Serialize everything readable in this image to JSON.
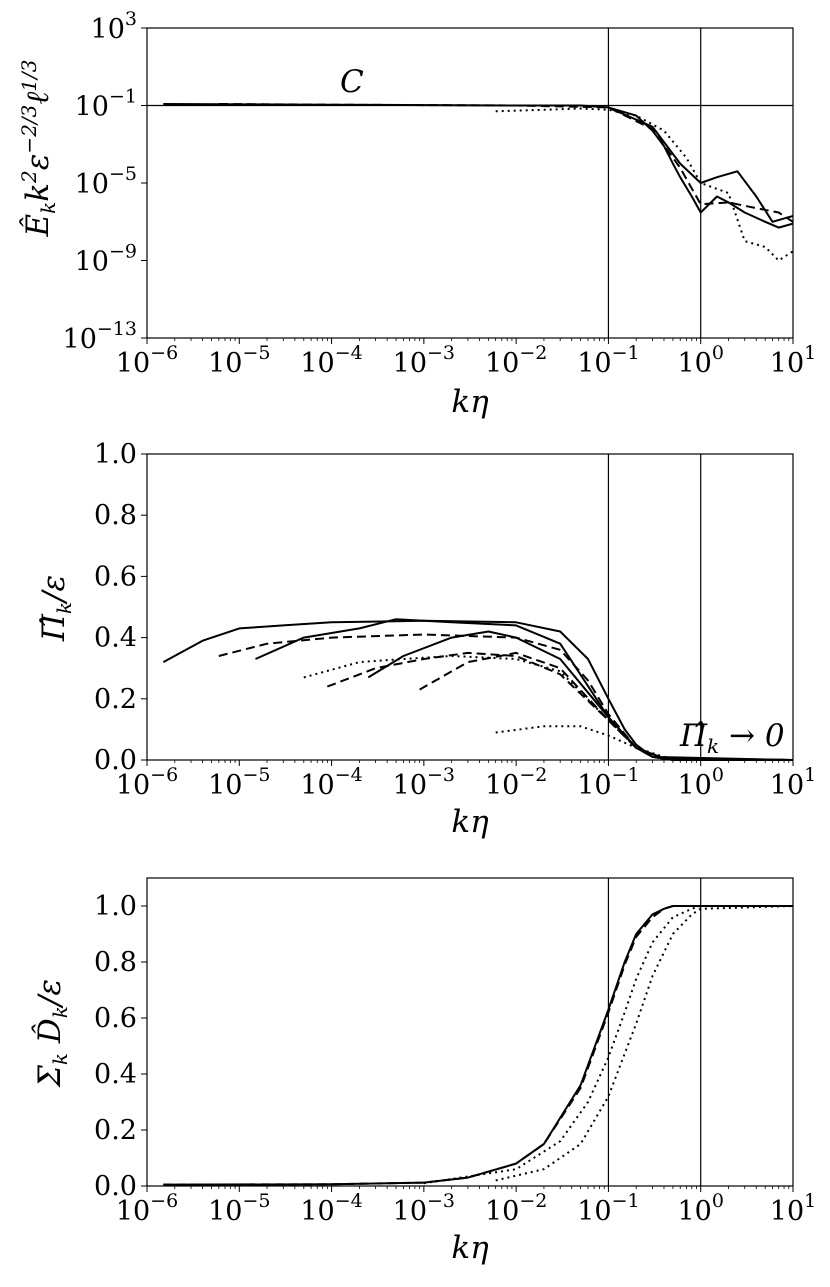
{
  "chart_data": [
    {
      "type": "line",
      "xscale": "log",
      "yscale": "log",
      "xlim": [
        1e-06,
        10
      ],
      "ylim": [
        1e-13,
        1000
      ],
      "x_ticks": [
        {
          "base": "10",
          "exp": "−6"
        },
        {
          "base": "10",
          "exp": "−5"
        },
        {
          "base": "10",
          "exp": "−4"
        },
        {
          "base": "10",
          "exp": "−3"
        },
        {
          "base": "10",
          "exp": "−2"
        },
        {
          "base": "10",
          "exp": "−1"
        },
        {
          "base": "10",
          "exp": "0"
        },
        {
          "base": "10",
          "exp": "1"
        }
      ],
      "y_ticks": [
        {
          "base": "10",
          "exp": "3"
        },
        {
          "base": "10",
          "exp": "−1"
        },
        {
          "base": "10",
          "exp": "−5"
        },
        {
          "base": "10",
          "exp": "−9"
        },
        {
          "base": "10",
          "exp": "−13"
        }
      ],
      "xlabel": "kη",
      "ylabel": "Ê_k k^2 ε^{-2/3} ℓ^{1/3}",
      "annotation": "C",
      "vlines": [
        0.1,
        1
      ],
      "hlines": [
        0.1
      ],
      "series": [
        {
          "style": "solid",
          "x": [
            1.5e-06,
            0.0001,
            0.01,
            0.05,
            0.1,
            0.2,
            0.3,
            0.4,
            0.5,
            0.6,
            0.8,
            1,
            1.5,
            2,
            3,
            5,
            7,
            10
          ],
          "y": [
            0.12,
            0.11,
            0.1,
            0.1,
            0.08,
            0.03,
            0.005,
            0.0008,
            0.0001,
            2e-05,
            2e-06,
            3e-07,
            2e-06,
            1e-06,
            3e-07,
            1e-07,
            5e-08,
            8e-08
          ]
        },
        {
          "style": "solid",
          "x": [
            0.1,
            0.3,
            0.6,
            1,
            1.5,
            2.5,
            4,
            6,
            10
          ],
          "y": [
            0.08,
            0.008,
            0.0001,
            1e-05,
            2e-05,
            4e-05,
            2e-06,
            1e-07,
            2e-07
          ]
        },
        {
          "style": "dashed",
          "x": [
            6e-06,
            0.0001,
            0.01,
            0.1,
            0.3,
            0.6,
            1,
            2,
            4,
            7,
            10
          ],
          "y": [
            0.12,
            0.11,
            0.1,
            0.08,
            0.006,
            6e-05,
            8e-07,
            1e-06,
            5e-07,
            3e-07,
            1e-07
          ]
        },
        {
          "style": "dotted",
          "x": [
            0.006,
            0.02,
            0.05,
            0.1,
            0.2,
            0.4,
            0.7,
            1,
            2,
            3,
            5,
            7,
            10
          ],
          "y": [
            0.05,
            0.06,
            0.07,
            0.06,
            0.03,
            0.005,
            0.0002,
            1e-05,
            3e-06,
            1e-08,
            5e-09,
            1e-09,
            3e-09
          ]
        }
      ]
    },
    {
      "type": "line",
      "xscale": "log",
      "yscale": "linear",
      "xlim": [
        1e-06,
        10
      ],
      "ylim": [
        0,
        1
      ],
      "x_ticks": [
        {
          "base": "10",
          "exp": "−6"
        },
        {
          "base": "10",
          "exp": "−5"
        },
        {
          "base": "10",
          "exp": "−4"
        },
        {
          "base": "10",
          "exp": "−3"
        },
        {
          "base": "10",
          "exp": "−2"
        },
        {
          "base": "10",
          "exp": "−1"
        },
        {
          "base": "10",
          "exp": "0"
        },
        {
          "base": "10",
          "exp": "1"
        }
      ],
      "y_ticks": [
        "0.0",
        "0.2",
        "0.4",
        "0.6",
        "0.8",
        "1.0"
      ],
      "xlabel": "kη",
      "ylabel": "Π̂_k/ε",
      "annotation": "Π̂_k → 0",
      "vlines": [
        0.1,
        1
      ],
      "series": [
        {
          "style": "solid",
          "x": [
            1.5e-06,
            4e-06,
            1e-05,
            3e-05,
            0.0001,
            0.001,
            0.01,
            0.03,
            0.06,
            0.1,
            0.15,
            0.2,
            0.3,
            0.5,
            1,
            10
          ],
          "y": [
            0.32,
            0.39,
            0.43,
            0.44,
            0.45,
            0.455,
            0.45,
            0.42,
            0.33,
            0.2,
            0.1,
            0.05,
            0.01,
            0,
            0,
            0
          ]
        },
        {
          "style": "dashed",
          "x": [
            6e-06,
            2e-05,
            0.0001,
            0.001,
            0.01,
            0.03,
            0.06,
            0.1,
            0.2,
            0.3,
            0.5,
            10
          ],
          "y": [
            0.34,
            0.38,
            0.4,
            0.41,
            0.4,
            0.36,
            0.26,
            0.15,
            0.04,
            0.01,
            0,
            0
          ]
        },
        {
          "style": "solid",
          "x": [
            1.5e-05,
            5e-05,
            0.0002,
            0.0005,
            0.002,
            0.01,
            0.03,
            0.1,
            0.2,
            0.3,
            10
          ],
          "y": [
            0.33,
            0.4,
            0.43,
            0.46,
            0.45,
            0.44,
            0.38,
            0.14,
            0.04,
            0.01,
            0
          ]
        },
        {
          "style": "dotted",
          "x": [
            5e-05,
            0.0002,
            0.0006,
            0.002,
            0.01,
            0.03,
            0.1,
            0.2,
            0.4,
            10
          ],
          "y": [
            0.27,
            0.32,
            0.33,
            0.34,
            0.33,
            0.29,
            0.13,
            0.04,
            0.005,
            0
          ]
        },
        {
          "style": "dashed",
          "x": [
            9e-05,
            0.0003,
            0.001,
            0.003,
            0.01,
            0.03,
            0.1,
            0.2,
            0.4,
            10
          ],
          "y": [
            0.24,
            0.3,
            0.33,
            0.35,
            0.34,
            0.28,
            0.13,
            0.04,
            0.005,
            0
          ]
        },
        {
          "style": "solid",
          "x": [
            0.00025,
            0.0006,
            0.002,
            0.005,
            0.01,
            0.03,
            0.1,
            0.2,
            0.4,
            10
          ],
          "y": [
            0.27,
            0.34,
            0.4,
            0.42,
            0.4,
            0.33,
            0.14,
            0.04,
            0.005,
            0
          ]
        },
        {
          "style": "dashed",
          "x": [
            0.0009,
            0.003,
            0.01,
            0.03,
            0.1,
            0.2,
            0.4,
            10
          ],
          "y": [
            0.23,
            0.32,
            0.35,
            0.3,
            0.13,
            0.04,
            0.005,
            0
          ]
        },
        {
          "style": "dotted",
          "x": [
            0.006,
            0.02,
            0.05,
            0.1,
            0.2,
            0.4,
            0.7,
            10
          ],
          "y": [
            0.09,
            0.11,
            0.11,
            0.08,
            0.04,
            0.01,
            0.001,
            0
          ]
        }
      ]
    },
    {
      "type": "line",
      "xscale": "log",
      "yscale": "linear",
      "xlim": [
        1e-06,
        10
      ],
      "ylim": [
        0,
        1.1
      ],
      "x_ticks": [
        {
          "base": "10",
          "exp": "−6"
        },
        {
          "base": "10",
          "exp": "−5"
        },
        {
          "base": "10",
          "exp": "−4"
        },
        {
          "base": "10",
          "exp": "−3"
        },
        {
          "base": "10",
          "exp": "−2"
        },
        {
          "base": "10",
          "exp": "−1"
        },
        {
          "base": "10",
          "exp": "0"
        },
        {
          "base": "10",
          "exp": "1"
        }
      ],
      "y_ticks": [
        "0.0",
        "0.2",
        "0.4",
        "0.6",
        "0.8",
        "1.0"
      ],
      "xlabel": "kη",
      "ylabel": "Σ_k D̂_k/ε",
      "vlines": [
        0.1,
        1
      ],
      "series": [
        {
          "style": "solid",
          "x": [
            1.5e-06,
            0.0001,
            0.001,
            0.003,
            0.01,
            0.02,
            0.05,
            0.1,
            0.15,
            0.2,
            0.3,
            0.4,
            0.5,
            1,
            10
          ],
          "y": [
            0.005,
            0.006,
            0.012,
            0.03,
            0.08,
            0.15,
            0.36,
            0.63,
            0.8,
            0.9,
            0.97,
            0.99,
            1.0,
            1.0,
            1.0
          ]
        },
        {
          "style": "dashed",
          "x": [
            1.5e-06,
            0.0001,
            0.001,
            0.003,
            0.01,
            0.02,
            0.05,
            0.1,
            0.15,
            0.2,
            0.3,
            0.4,
            0.5,
            1,
            10
          ],
          "y": [
            0.005,
            0.006,
            0.012,
            0.03,
            0.08,
            0.15,
            0.35,
            0.62,
            0.79,
            0.89,
            0.96,
            0.99,
            1.0,
            1.0,
            1.0
          ]
        },
        {
          "style": "dotted",
          "x": [
            0.001,
            0.01,
            0.03,
            0.06,
            0.1,
            0.15,
            0.2,
            0.3,
            0.5,
            0.8,
            1,
            10
          ],
          "y": [
            0.01,
            0.06,
            0.16,
            0.3,
            0.46,
            0.62,
            0.74,
            0.87,
            0.96,
            0.99,
            1.0,
            1.0
          ]
        },
        {
          "style": "dotted",
          "x": [
            0.006,
            0.02,
            0.05,
            0.1,
            0.2,
            0.3,
            0.5,
            0.8,
            1,
            10
          ],
          "y": [
            0.02,
            0.06,
            0.15,
            0.32,
            0.58,
            0.75,
            0.9,
            0.97,
            0.99,
            1.0
          ]
        }
      ]
    }
  ]
}
